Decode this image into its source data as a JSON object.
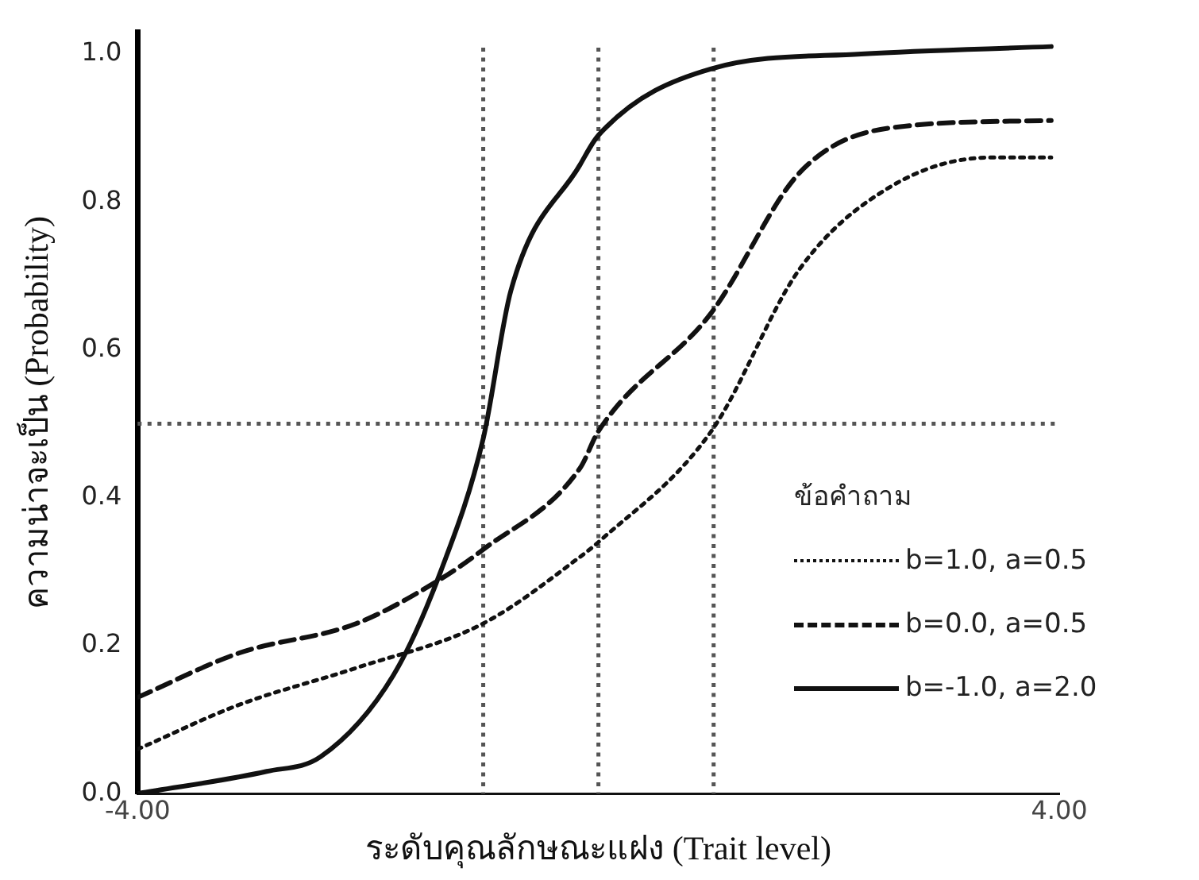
{
  "chart_data": {
    "type": "line",
    "xlabel": "ระดับคุณลักษณะแฝง (Trait level)",
    "ylabel": "ความน่าจะเป็น (Probability)",
    "legend_title": "ข้อคำถาม",
    "xlim": [
      -4,
      4
    ],
    "ylim": [
      0,
      1.03
    ],
    "xticks": [
      {
        "value": -4,
        "label": "-4.00"
      },
      {
        "value": 4,
        "label": "4.00"
      }
    ],
    "yticks": [
      {
        "value": 0,
        "label": "0.0"
      },
      {
        "value": 0.2,
        "label": "0.2"
      },
      {
        "value": 0.4,
        "label": "0.4"
      },
      {
        "value": 0.6,
        "label": "0.6"
      },
      {
        "value": 0.8,
        "label": "0.8"
      },
      {
        "value": 1,
        "label": "1.0"
      }
    ],
    "grid": false,
    "legend": "bottom right",
    "marker": "none",
    "ref_lines": [
      {
        "axis": "x",
        "value": -1,
        "color": "#555555",
        "line_style": "dotted"
      },
      {
        "axis": "x",
        "value": 0,
        "color": "#555555",
        "line_style": "dotted"
      },
      {
        "axis": "x",
        "value": 1,
        "color": "#555555",
        "line_style": "dotted"
      },
      {
        "axis": "y",
        "value": 0.5,
        "color": "#555555",
        "line_style": "dotted"
      }
    ],
    "series": [
      {
        "name": "b=1.0, a=0.5",
        "color": "#111111",
        "line_style": "dotted",
        "x": [
          -4,
          -3.12,
          -2.1,
          -1.0,
          -0.16,
          0,
          0.98,
          1.75,
          2.53,
          3.4,
          3.93
        ],
        "values": [
          0.06,
          0.12,
          0.17,
          0.23,
          0.32,
          0.34,
          0.49,
          0.71,
          0.82,
          0.86,
          0.86
        ]
      },
      {
        "name": "b=0.0, a=0.5",
        "color": "#111111",
        "line_style": "dashed",
        "x": [
          -4,
          -3.12,
          -2.1,
          -1.37,
          -1.0,
          -0.16,
          0,
          0.98,
          1.75,
          2.53,
          3.93
        ],
        "values": [
          0.13,
          0.19,
          0.23,
          0.29,
          0.33,
          0.44,
          0.49,
          0.65,
          0.84,
          0.9,
          0.91
        ]
      },
      {
        "name": "b=-1.0, a=2.0",
        "color": "#111111",
        "line_style": "solid",
        "x": [
          -4,
          -2.88,
          -2.41,
          -1.78,
          -1.37,
          -1.0,
          -0.76,
          -0.16,
          0,
          0.98,
          2.28,
          3.93
        ],
        "values": [
          0,
          0.03,
          0.05,
          0.16,
          0.3,
          0.48,
          0.68,
          0.85,
          0.89,
          0.98,
          1.0,
          1.01
        ]
      }
    ]
  }
}
